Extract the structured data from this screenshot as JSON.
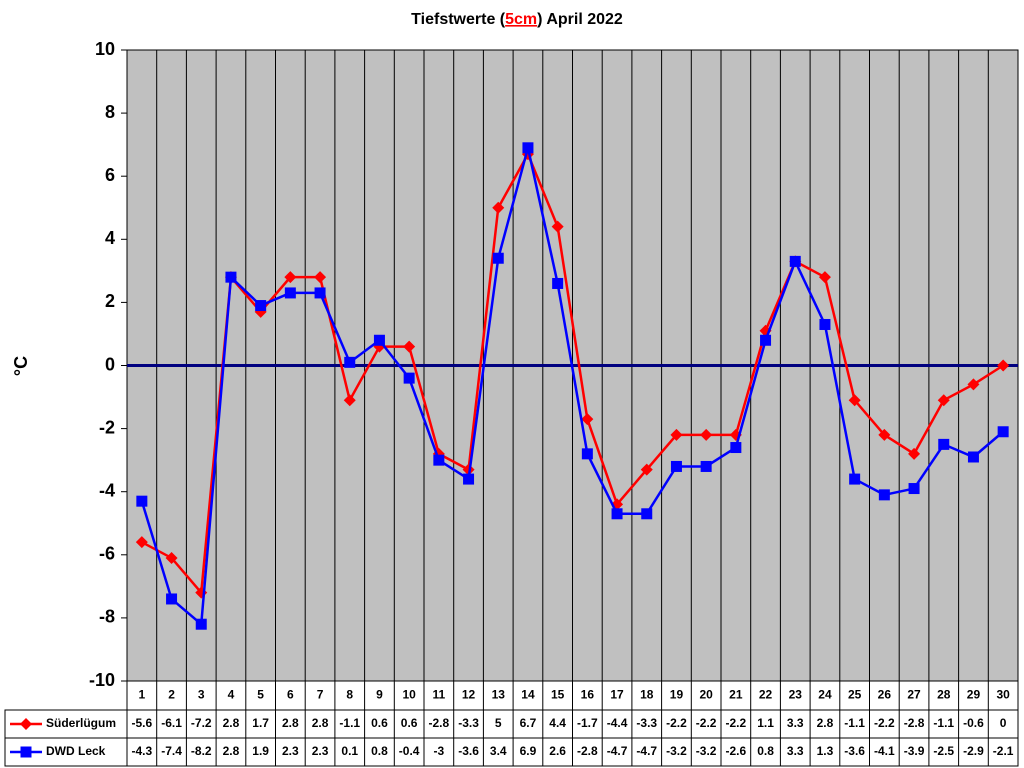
{
  "chart_data": {
    "type": "line",
    "title": {
      "before": "Tiefstwerte (",
      "highlight": "5cm",
      "after": ") April 2022"
    },
    "y_label": "°C",
    "categories": [
      "1",
      "2",
      "3",
      "4",
      "5",
      "6",
      "7",
      "8",
      "9",
      "10",
      "11",
      "12",
      "13",
      "14",
      "15",
      "16",
      "17",
      "18",
      "19",
      "20",
      "21",
      "22",
      "23",
      "24",
      "25",
      "26",
      "27",
      "28",
      "29",
      "30"
    ],
    "series": [
      {
        "name": "Süderlügum",
        "color": "#ff0000",
        "marker": "diamond",
        "values": [
          -5.6,
          -6.1,
          -7.2,
          2.8,
          1.7,
          2.8,
          2.8,
          -1.1,
          0.6,
          0.6,
          -2.8,
          -3.3,
          5,
          6.7,
          4.4,
          -1.7,
          -4.4,
          -3.3,
          -2.2,
          -2.2,
          -2.2,
          1.1,
          3.3,
          2.8,
          -1.1,
          -2.2,
          -2.8,
          -1.1,
          -0.6,
          0
        ]
      },
      {
        "name": "DWD Leck",
        "color": "#0000ff",
        "marker": "square",
        "values": [
          -4.3,
          -7.4,
          -8.2,
          2.8,
          1.9,
          2.3,
          2.3,
          0.1,
          0.8,
          -0.4,
          -3,
          -3.6,
          3.4,
          6.9,
          2.6,
          -2.8,
          -4.7,
          -4.7,
          -3.2,
          -3.2,
          -2.6,
          0.8,
          3.3,
          1.3,
          -3.6,
          -4.1,
          -3.9,
          -2.5,
          -2.9,
          -2.1
        ]
      }
    ],
    "ylim": [
      -10,
      10
    ],
    "yticks": [
      -10,
      -8,
      -6,
      -4,
      -2,
      0,
      2,
      4,
      6,
      8,
      10
    ],
    "grid": true,
    "data_table": true
  }
}
